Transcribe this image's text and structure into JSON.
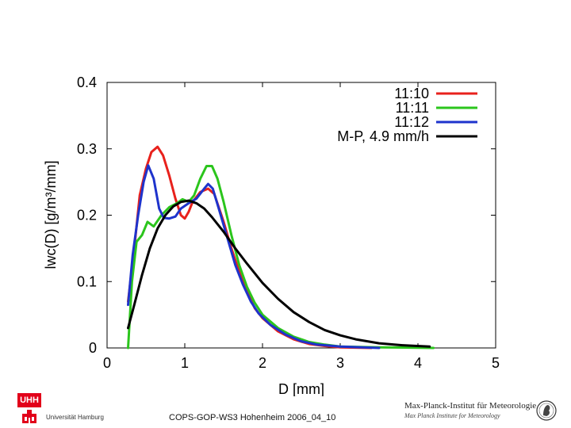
{
  "chart_data": {
    "type": "line",
    "title": "",
    "xlabel": "D [mm]",
    "ylabel": "lwc(D) [g/m³/mm]",
    "xlim": [
      0,
      5
    ],
    "ylim": [
      0,
      0.4
    ],
    "xticks": [
      "0",
      "1",
      "2",
      "3",
      "4",
      "5"
    ],
    "yticks": [
      "0",
      "0.1",
      "0.2",
      "0.3",
      "0.4"
    ],
    "legend_position": "top-right",
    "series": [
      {
        "name": "11:10",
        "color": "#e8211c",
        "points": [
          [
            0.27,
            0.07
          ],
          [
            0.35,
            0.15
          ],
          [
            0.42,
            0.23
          ],
          [
            0.5,
            0.27
          ],
          [
            0.57,
            0.295
          ],
          [
            0.65,
            0.303
          ],
          [
            0.72,
            0.29
          ],
          [
            0.8,
            0.26
          ],
          [
            0.88,
            0.225
          ],
          [
            0.95,
            0.2
          ],
          [
            1.0,
            0.195
          ],
          [
            1.05,
            0.205
          ],
          [
            1.1,
            0.22
          ],
          [
            1.2,
            0.235
          ],
          [
            1.3,
            0.24
          ],
          [
            1.38,
            0.232
          ],
          [
            1.5,
            0.19
          ],
          [
            1.6,
            0.15
          ],
          [
            1.7,
            0.115
          ],
          [
            1.8,
            0.085
          ],
          [
            1.9,
            0.06
          ],
          [
            2.0,
            0.045
          ],
          [
            2.2,
            0.025
          ],
          [
            2.4,
            0.013
          ],
          [
            2.6,
            0.006
          ],
          [
            2.8,
            0.003
          ],
          [
            3.0,
            0.001
          ],
          [
            3.4,
            0.0
          ]
        ]
      },
      {
        "name": "11:11",
        "color": "#2bc51c",
        "points": [
          [
            0.27,
            0.0
          ],
          [
            0.32,
            0.1
          ],
          [
            0.38,
            0.16
          ],
          [
            0.45,
            0.17
          ],
          [
            0.52,
            0.19
          ],
          [
            0.6,
            0.183
          ],
          [
            0.7,
            0.2
          ],
          [
            0.8,
            0.212
          ],
          [
            0.9,
            0.218
          ],
          [
            0.97,
            0.224
          ],
          [
            1.05,
            0.22
          ],
          [
            1.12,
            0.23
          ],
          [
            1.2,
            0.255
          ],
          [
            1.28,
            0.274
          ],
          [
            1.35,
            0.274
          ],
          [
            1.42,
            0.255
          ],
          [
            1.5,
            0.22
          ],
          [
            1.6,
            0.17
          ],
          [
            1.7,
            0.125
          ],
          [
            1.8,
            0.092
          ],
          [
            1.9,
            0.068
          ],
          [
            2.0,
            0.05
          ],
          [
            2.2,
            0.03
          ],
          [
            2.4,
            0.017
          ],
          [
            2.6,
            0.009
          ],
          [
            2.8,
            0.005
          ],
          [
            3.0,
            0.002
          ],
          [
            3.5,
            0.001
          ],
          [
            4.2,
            0.0
          ]
        ]
      },
      {
        "name": "11:12",
        "color": "#1e33cc",
        "points": [
          [
            0.27,
            0.065
          ],
          [
            0.33,
            0.14
          ],
          [
            0.4,
            0.2
          ],
          [
            0.47,
            0.25
          ],
          [
            0.53,
            0.275
          ],
          [
            0.6,
            0.255
          ],
          [
            0.67,
            0.21
          ],
          [
            0.73,
            0.196
          ],
          [
            0.8,
            0.195
          ],
          [
            0.88,
            0.198
          ],
          [
            0.95,
            0.21
          ],
          [
            1.05,
            0.218
          ],
          [
            1.15,
            0.225
          ],
          [
            1.25,
            0.24
          ],
          [
            1.3,
            0.247
          ],
          [
            1.36,
            0.24
          ],
          [
            1.45,
            0.205
          ],
          [
            1.55,
            0.165
          ],
          [
            1.65,
            0.125
          ],
          [
            1.75,
            0.095
          ],
          [
            1.85,
            0.07
          ],
          [
            1.95,
            0.052
          ],
          [
            2.1,
            0.035
          ],
          [
            2.3,
            0.02
          ],
          [
            2.5,
            0.01
          ],
          [
            2.7,
            0.005
          ],
          [
            3.0,
            0.002
          ],
          [
            3.5,
            0.0
          ]
        ]
      },
      {
        "name": "M-P, 4.9 mm/h",
        "color": "#000000",
        "points": [
          [
            0.27,
            0.03
          ],
          [
            0.35,
            0.065
          ],
          [
            0.45,
            0.11
          ],
          [
            0.55,
            0.15
          ],
          [
            0.65,
            0.18
          ],
          [
            0.75,
            0.2
          ],
          [
            0.85,
            0.213
          ],
          [
            0.95,
            0.22
          ],
          [
            1.05,
            0.222
          ],
          [
            1.15,
            0.218
          ],
          [
            1.25,
            0.21
          ],
          [
            1.35,
            0.197
          ],
          [
            1.5,
            0.175
          ],
          [
            1.65,
            0.15
          ],
          [
            1.8,
            0.127
          ],
          [
            2.0,
            0.098
          ],
          [
            2.2,
            0.074
          ],
          [
            2.4,
            0.054
          ],
          [
            2.6,
            0.039
          ],
          [
            2.8,
            0.027
          ],
          [
            3.0,
            0.019
          ],
          [
            3.2,
            0.013
          ],
          [
            3.5,
            0.007
          ],
          [
            3.8,
            0.004
          ],
          [
            4.15,
            0.002
          ]
        ]
      }
    ]
  },
  "footer": {
    "caption": "COPS-GOP-WS3 Hohenheim 2006_04_10",
    "uhh_abbrev": "UHH",
    "uhh_name": "Universität Hamburg",
    "mpi_name": "Max-Planck-Institut für Meteorologie",
    "mpi_sub": "Max Planck Institute for Meteorology"
  }
}
